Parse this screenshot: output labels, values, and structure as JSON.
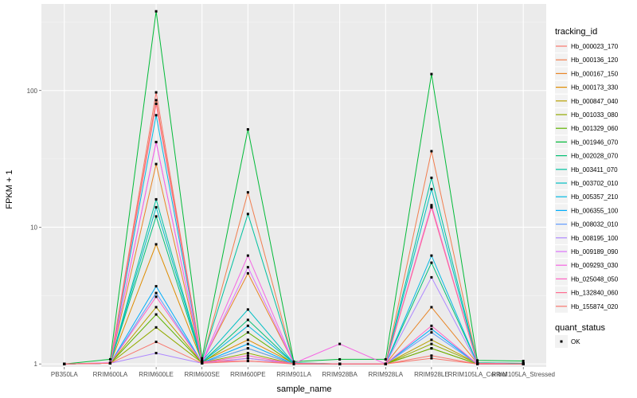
{
  "chart_data": {
    "type": "line",
    "xlabel": "sample_name",
    "ylabel": "FPKM + 1",
    "y_scale": "log10",
    "ylim": [
      0.95,
      430
    ],
    "y_ticks": [
      1,
      10,
      100
    ],
    "y_tick_labels": [
      "1",
      "10",
      "100"
    ],
    "grid": true,
    "legend_position": "right",
    "categories": [
      "PB350LA",
      "RRIM600LA",
      "RRIM600LE",
      "RRIM600SE",
      "RRIM600PE",
      "RRIM901LA",
      "RRIM928BA",
      "RRIM928LA",
      "RRIM928LE",
      "RRIM105LA_Control",
      "RRIM105LA_Stressed"
    ],
    "legend_title": "tracking_id",
    "series": [
      {
        "name": "Hb_000023_170",
        "color": "#F8766D",
        "values": [
          1,
          1.02,
          97,
          1.02,
          1.1,
          1.01,
          1.0,
          1.0,
          1.1,
          1.0,
          1.0
        ]
      },
      {
        "name": "Hb_000136_120",
        "color": "#F17E4F",
        "values": [
          1,
          1.01,
          85,
          1.05,
          18,
          1.02,
          1.0,
          1.0,
          36,
          1.02,
          1.01
        ]
      },
      {
        "name": "Hb_000167_150",
        "color": "#E88526",
        "values": [
          1,
          1.01,
          29,
          1.03,
          4.6,
          1.01,
          1.0,
          1.0,
          2.6,
          1.01,
          1.0
        ]
      },
      {
        "name": "Hb_000173_330",
        "color": "#DE8C00",
        "values": [
          1,
          1.01,
          7.5,
          1.04,
          1.5,
          1.01,
          1.0,
          1.0,
          1.3,
          1.0,
          1.0
        ]
      },
      {
        "name": "Hb_000847_040",
        "color": "#B79F00",
        "values": [
          1,
          1.01,
          2.6,
          1.02,
          1.3,
          1.0,
          1.0,
          1.0,
          1.5,
          1.01,
          1.0
        ]
      },
      {
        "name": "Hb_001033_080",
        "color": "#93AA00",
        "values": [
          1,
          1.01,
          1.85,
          1.02,
          1.2,
          1.0,
          1.0,
          1.0,
          1.4,
          1.01,
          1.0
        ]
      },
      {
        "name": "Hb_001329_060",
        "color": "#5EB300",
        "values": [
          1,
          1.01,
          2.3,
          1.02,
          1.7,
          1.0,
          1.0,
          1.0,
          1.3,
          1.0,
          1.0
        ]
      },
      {
        "name": "Hb_001946_070",
        "color": "#00BA38",
        "values": [
          1,
          1.08,
          380,
          1.1,
          52,
          1.04,
          1.08,
          1.08,
          132,
          1.06,
          1.05
        ]
      },
      {
        "name": "Hb_002028_070",
        "color": "#00BF74",
        "values": [
          1,
          1.01,
          12,
          1.03,
          2.1,
          1.01,
          1.0,
          1.0,
          5.5,
          1.01,
          1.0
        ]
      },
      {
        "name": "Hb_003411_070",
        "color": "#00C19F",
        "values": [
          1,
          1.01,
          16,
          1.06,
          12.5,
          1.02,
          1.0,
          1.0,
          23,
          1.02,
          1.01
        ]
      },
      {
        "name": "Hb_003702_010",
        "color": "#00BFC4",
        "values": [
          1,
          1.01,
          14,
          1.05,
          2.5,
          1.01,
          1.0,
          1.0,
          19,
          1.01,
          1.0
        ]
      },
      {
        "name": "Hb_005357_210",
        "color": "#00B9E3",
        "values": [
          1,
          1.01,
          66,
          1.03,
          1.9,
          1.01,
          1.0,
          1.0,
          6.2,
          1.01,
          1.0
        ]
      },
      {
        "name": "Hb_006355_100",
        "color": "#00ADFA",
        "values": [
          1,
          1.01,
          3.7,
          1.02,
          1.4,
          1.0,
          1.0,
          1.0,
          1.8,
          1.0,
          1.0
        ]
      },
      {
        "name": "Hb_008032_010",
        "color": "#619CFF",
        "values": [
          1,
          1.01,
          3.3,
          1.02,
          1.3,
          1.0,
          1.0,
          1.0,
          1.7,
          1.0,
          1.0
        ]
      },
      {
        "name": "Hb_008195_100",
        "color": "#AE87FF",
        "values": [
          1,
          1.01,
          1.2,
          1.01,
          1.1,
          1.0,
          1.0,
          1.0,
          4.3,
          1.0,
          1.0
        ]
      },
      {
        "name": "Hb_009189_090",
        "color": "#DB72FB",
        "values": [
          1,
          1.01,
          42,
          1.02,
          5.1,
          1.01,
          1.0,
          1.0,
          14,
          1.01,
          1.0
        ]
      },
      {
        "name": "Hb_009293_030",
        "color": "#F564E3",
        "values": [
          1,
          1.02,
          42,
          1.03,
          6.2,
          1.01,
          1.4,
          1.0,
          14.5,
          1.01,
          1.0
        ]
      },
      {
        "name": "Hb_025048_050",
        "color": "#FF61C3",
        "values": [
          1,
          1.01,
          3.1,
          1.02,
          1.15,
          1.0,
          1.0,
          1.0,
          1.9,
          1.0,
          1.0
        ]
      },
      {
        "name": "Hb_132840_060",
        "color": "#FF6C91",
        "values": [
          1,
          1.01,
          80,
          1.04,
          1.05,
          1.01,
          1.0,
          1.0,
          14,
          1.01,
          1.0
        ]
      },
      {
        "name": "Hb_155874_020",
        "color": "#F8766D",
        "values": [
          1,
          1.01,
          1.45,
          1.01,
          1.05,
          1.0,
          1.0,
          1.0,
          1.15,
          1.0,
          1.0
        ]
      }
    ],
    "legend2_title": "quant_status",
    "legend2_items": [
      "OK"
    ]
  }
}
